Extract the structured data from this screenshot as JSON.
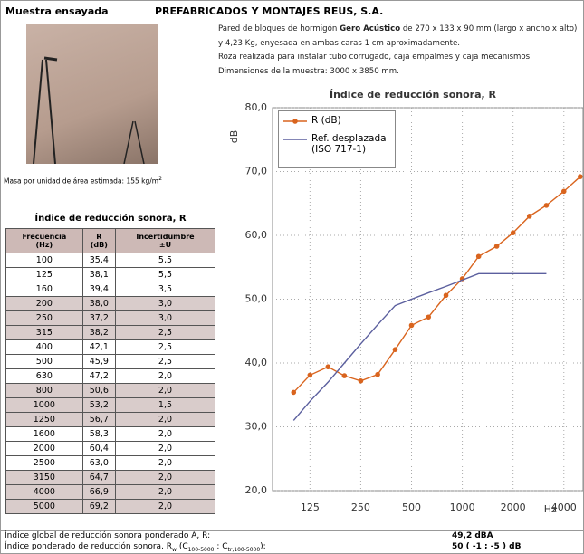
{
  "header": {
    "label": "Muestra ensayada",
    "company": "PREFABRICADOS Y MONTAJES REUS, S.A."
  },
  "description": {
    "parts": [
      "Pared de bloques de hormigón ",
      "Gero Acústico",
      " de 270 x 133 x 90 mm (largo x ancho x alto) y 4,23 Kg, enyesada en ambas caras 1 cm aproximadamente."
    ],
    "line2": "Roza realizada para instalar tubo corrugado, caja empalmes y caja mecanismos.",
    "line3": "Dimensiones de la muestra: 3000 x 3850 mm."
  },
  "mass": {
    "text": "Masa por unidad de área estimada: 155 kg/m",
    "sup": "2"
  },
  "table": {
    "title": "Índice de reducción sonora, R",
    "header": [
      [
        "Frecuencia",
        "(Hz)"
      ],
      [
        "R",
        "(dB)"
      ],
      [
        "Incertidumbre",
        "±U"
      ]
    ],
    "rows": [
      [
        "100",
        "35,4",
        "5,5"
      ],
      [
        "125",
        "38,1",
        "5,5"
      ],
      [
        "160",
        "39,4",
        "3,5"
      ],
      [
        "200",
        "38,0",
        "3,0"
      ],
      [
        "250",
        "37,2",
        "3,0"
      ],
      [
        "315",
        "38,2",
        "2,5"
      ],
      [
        "400",
        "42,1",
        "2,5"
      ],
      [
        "500",
        "45,9",
        "2,5"
      ],
      [
        "630",
        "47,2",
        "2,0"
      ],
      [
        "800",
        "50,6",
        "2,0"
      ],
      [
        "1000",
        "53,2",
        "1,5"
      ],
      [
        "1250",
        "56,7",
        "2,0"
      ],
      [
        "1600",
        "58,3",
        "2,0"
      ],
      [
        "2000",
        "60,4",
        "2,0"
      ],
      [
        "2500",
        "63,0",
        "2,0"
      ],
      [
        "3150",
        "64,7",
        "2,0"
      ],
      [
        "4000",
        "66,9",
        "2,0"
      ],
      [
        "5000",
        "69,2",
        "2,0"
      ]
    ]
  },
  "chart_data": {
    "type": "line",
    "title": "Índice de reducción sonora, R",
    "y_label": "dB",
    "x_unit": "Hz",
    "x": [
      100,
      125,
      160,
      200,
      250,
      315,
      400,
      500,
      630,
      800,
      1000,
      1250,
      1600,
      2000,
      2500,
      3150,
      4000,
      5000
    ],
    "series": [
      {
        "name": "R (dB)",
        "color": "#d9641e",
        "values": [
          35.4,
          38.1,
          39.4,
          38.0,
          37.2,
          38.2,
          42.1,
          45.9,
          47.2,
          50.6,
          53.2,
          56.7,
          58.3,
          60.4,
          63.0,
          64.7,
          66.9,
          69.2
        ]
      },
      {
        "name": "Ref. desplazada (ISO 717-1)",
        "color": "#5b5f9e",
        "values": [
          31,
          34,
          37,
          40,
          43,
          46,
          49,
          50,
          51,
          52,
          53,
          54,
          54,
          54,
          54,
          54,
          null,
          null
        ]
      }
    ],
    "xlog": true,
    "xlim": [
      75,
      5200
    ],
    "xticks": [
      125,
      250,
      500,
      1000,
      2000,
      4000
    ],
    "ylim": [
      20,
      80
    ],
    "yticks": [
      {
        "value": 20,
        "label": "20,0"
      },
      {
        "value": 30,
        "label": "30,0"
      },
      {
        "value": 40,
        "label": "40,0"
      },
      {
        "value": 50,
        "label": "50,0"
      },
      {
        "value": 60,
        "label": "60,0"
      },
      {
        "value": 70,
        "label": "70,0"
      },
      {
        "value": 80,
        "label": "80,0"
      }
    ],
    "grid": true,
    "legend": "upper left"
  },
  "footer": {
    "rows": [
      {
        "parts": [
          "Índice global de reducción sonora ponderado A, R:"
        ],
        "value": "49,2 dBA"
      },
      {
        "parts": [
          "Índice ponderado de reducción sonora, R",
          "w",
          " (C",
          "100-5000",
          " ; C",
          "tr,100-5000",
          "):"
        ],
        "value": "50 ( -1 ; -5 ) dB"
      }
    ]
  }
}
